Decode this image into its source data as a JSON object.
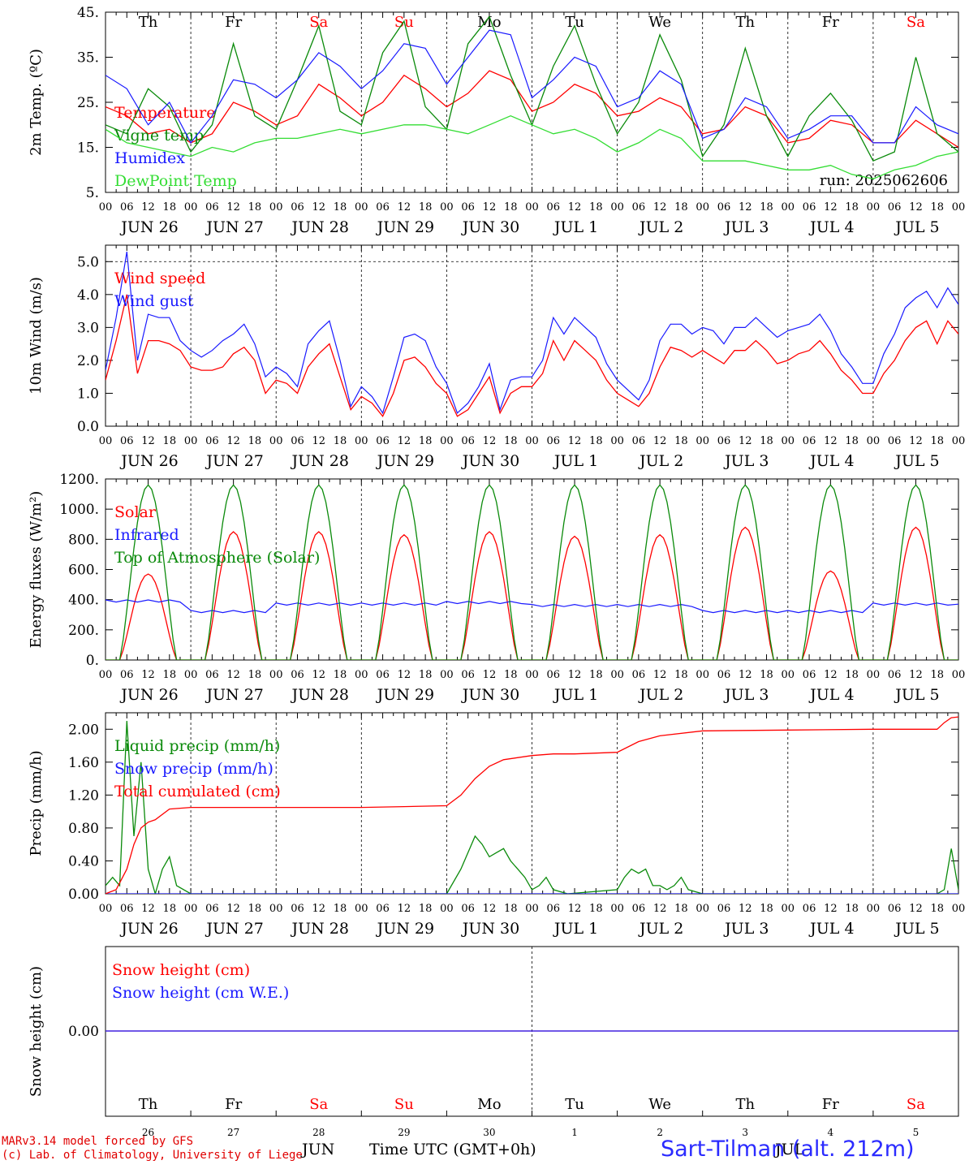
{
  "colors": {
    "red": "#ff0000",
    "green": "#0a8a0a",
    "blue": "#1a1aff",
    "lightgreen": "#33dd33",
    "text": "#000000"
  },
  "footer": {
    "line1": "MARv3.14 model forced by GFS",
    "line2": "(c) Lab. of Climatology, University of Liege",
    "station": "Sart-Tilman (alt. 212m)",
    "xaxis_title": "Time UTC (GMT+0h)",
    "month_jun": "JUN",
    "month_jul": "JUL"
  },
  "axes": {
    "hour_labels": [
      "00",
      "06",
      "12",
      "18"
    ],
    "final_hour": "00",
    "date_labels": [
      "JUN 26",
      "JUN 27",
      "JUN 28",
      "JUN 29",
      "JUN 30",
      "JUL  1",
      "JUL  2",
      "JUL  3",
      "JUL  4",
      "JUL  5"
    ],
    "weekdays": [
      "Th",
      "Fr",
      "Sa",
      "Su",
      "Mo",
      "Tu",
      "We",
      "Th",
      "Fr",
      "Sa"
    ],
    "weekday_colors": [
      "#000000",
      "#000000",
      "#ff0000",
      "#ff0000",
      "#000000",
      "#000000",
      "#000000",
      "#000000",
      "#000000",
      "#ff0000"
    ],
    "day_numbers": [
      "26",
      "27",
      "28",
      "29",
      "30",
      "1",
      "2",
      "3",
      "4",
      "5"
    ]
  },
  "chart_data": [
    {
      "type": "line",
      "id": "temperature",
      "ylabel": "2m Temp. (ºC)",
      "ylim": [
        5,
        45
      ],
      "yticks": [
        5,
        15,
        25,
        35,
        45
      ],
      "ytick_labels": [
        "5.",
        "15.",
        "25.",
        "35.",
        "45."
      ],
      "run_label": "run: 2025062606",
      "x_unit": "hours since 2025-06-26 00 UTC",
      "x_range": [
        0,
        240
      ],
      "series": [
        {
          "name": "Temperature",
          "color": "#ff0000",
          "x": [
            0,
            6,
            12,
            18,
            24,
            30,
            36,
            42,
            48,
            54,
            60,
            66,
            72,
            78,
            84,
            90,
            96,
            102,
            108,
            114,
            120,
            126,
            132,
            138,
            144,
            150,
            156,
            162,
            168,
            174,
            180,
            186,
            192,
            198,
            204,
            210,
            216,
            222,
            228,
            234,
            240
          ],
          "y": [
            24,
            22,
            18,
            19,
            16,
            18,
            25,
            23,
            20,
            22,
            29,
            26,
            22,
            25,
            31,
            28,
            24,
            27,
            32,
            30,
            23,
            25,
            29,
            27,
            22,
            23,
            26,
            24,
            18,
            19,
            24,
            22,
            16,
            17,
            21,
            20,
            16,
            16,
            21,
            18,
            15
          ]
        },
        {
          "name": "Vigne temp",
          "color": "#0a8a0a",
          "x": [
            0,
            6,
            12,
            18,
            24,
            30,
            36,
            42,
            48,
            54,
            60,
            66,
            72,
            78,
            84,
            90,
            96,
            102,
            108,
            114,
            120,
            126,
            132,
            138,
            144,
            150,
            156,
            162,
            168,
            174,
            180,
            186,
            192,
            198,
            204,
            210,
            216,
            222,
            228,
            234,
            240
          ],
          "y": [
            20,
            18,
            28,
            24,
            14,
            20,
            38,
            22,
            19,
            30,
            42,
            23,
            20,
            36,
            43,
            24,
            19,
            38,
            44,
            31,
            20,
            33,
            42,
            29,
            18,
            25,
            40,
            30,
            13,
            20,
            37,
            22,
            13,
            22,
            27,
            21,
            12,
            14,
            35,
            18,
            14
          ]
        },
        {
          "name": "Humidex",
          "color": "#1a1aff",
          "x": [
            0,
            6,
            12,
            18,
            24,
            30,
            36,
            42,
            48,
            54,
            60,
            66,
            72,
            78,
            84,
            90,
            96,
            102,
            108,
            114,
            120,
            126,
            132,
            138,
            144,
            150,
            156,
            162,
            168,
            174,
            180,
            186,
            192,
            198,
            204,
            210,
            216,
            222,
            228,
            234,
            240
          ],
          "y": [
            31,
            28,
            20,
            25,
            16,
            22,
            30,
            29,
            26,
            30,
            36,
            33,
            28,
            32,
            38,
            37,
            29,
            35,
            41,
            40,
            26,
            30,
            35,
            33,
            24,
            26,
            32,
            29,
            17,
            19,
            26,
            24,
            17,
            19,
            22,
            22,
            16,
            16,
            24,
            20,
            18
          ]
        },
        {
          "name": "DewPoint Temp",
          "color": "#33dd33",
          "x": [
            0,
            6,
            12,
            18,
            24,
            30,
            36,
            42,
            48,
            54,
            60,
            66,
            72,
            78,
            84,
            90,
            96,
            102,
            108,
            114,
            120,
            126,
            132,
            138,
            144,
            150,
            156,
            162,
            168,
            174,
            180,
            186,
            192,
            198,
            204,
            210,
            216,
            222,
            228,
            234,
            240
          ],
          "y": [
            19,
            16,
            15,
            14,
            13,
            15,
            14,
            16,
            17,
            17,
            18,
            19,
            18,
            19,
            20,
            20,
            19,
            18,
            20,
            22,
            20,
            18,
            19,
            17,
            14,
            16,
            19,
            17,
            12,
            12,
            12,
            11,
            10,
            10,
            11,
            9,
            8,
            10,
            11,
            13,
            14
          ]
        }
      ]
    },
    {
      "type": "line",
      "id": "wind",
      "ylabel": "10m Wind (m/s)",
      "ylim": [
        0,
        5.5
      ],
      "yticks": [
        0,
        1,
        2,
        3,
        4,
        5
      ],
      "ytick_labels": [
        "0.0",
        "1.0",
        "2.0",
        "3.0",
        "4.0",
        "5.0"
      ],
      "x_unit": "hours since 2025-06-26 00 UTC",
      "x_range": [
        0,
        240
      ],
      "series": [
        {
          "name": "Wind speed",
          "color": "#ff0000",
          "x": [
            0,
            3,
            6,
            9,
            12,
            15,
            18,
            21,
            24,
            27,
            30,
            33,
            36,
            39,
            42,
            45,
            48,
            51,
            54,
            57,
            60,
            63,
            66,
            69,
            72,
            75,
            78,
            81,
            84,
            87,
            90,
            93,
            96,
            99,
            102,
            105,
            108,
            111,
            114,
            117,
            120,
            123,
            126,
            129,
            132,
            135,
            138,
            141,
            144,
            147,
            150,
            153,
            156,
            159,
            162,
            165,
            168,
            171,
            174,
            177,
            180,
            183,
            186,
            189,
            192,
            195,
            198,
            201,
            204,
            207,
            210,
            213,
            216,
            219,
            222,
            225,
            228,
            231,
            234,
            237,
            240
          ],
          "y": [
            1.4,
            2.6,
            4.0,
            1.6,
            2.6,
            2.6,
            2.5,
            2.3,
            1.8,
            1.7,
            1.7,
            1.8,
            2.2,
            2.4,
            2.0,
            1.0,
            1.4,
            1.3,
            1.0,
            1.8,
            2.2,
            2.5,
            1.5,
            0.5,
            0.9,
            0.7,
            0.3,
            1.0,
            2.0,
            2.1,
            1.8,
            1.3,
            1.0,
            0.3,
            0.5,
            1.0,
            1.5,
            0.4,
            1.0,
            1.2,
            1.2,
            1.6,
            2.6,
            2.0,
            2.6,
            2.3,
            2.0,
            1.4,
            1.0,
            0.8,
            0.6,
            1.0,
            1.8,
            2.4,
            2.3,
            2.1,
            2.3,
            2.1,
            1.9,
            2.3,
            2.3,
            2.6,
            2.3,
            1.9,
            2.0,
            2.2,
            2.3,
            2.6,
            2.2,
            1.7,
            1.4,
            1.0,
            1.0,
            1.6,
            2.0,
            2.6,
            3.0,
            3.2,
            2.5,
            3.2,
            2.8
          ]
        },
        {
          "name": "Wind gust",
          "color": "#1a1aff",
          "x": [
            0,
            3,
            6,
            9,
            12,
            15,
            18,
            21,
            24,
            27,
            30,
            33,
            36,
            39,
            42,
            45,
            48,
            51,
            54,
            57,
            60,
            63,
            66,
            69,
            72,
            75,
            78,
            81,
            84,
            87,
            90,
            93,
            96,
            99,
            102,
            105,
            108,
            111,
            114,
            117,
            120,
            123,
            126,
            129,
            132,
            135,
            138,
            141,
            144,
            147,
            150,
            153,
            156,
            159,
            162,
            165,
            168,
            171,
            174,
            177,
            180,
            183,
            186,
            189,
            192,
            195,
            198,
            201,
            204,
            207,
            210,
            213,
            216,
            219,
            222,
            225,
            228,
            231,
            234,
            237,
            240
          ],
          "y": [
            1.7,
            3.3,
            5.3,
            2.0,
            3.4,
            3.3,
            3.3,
            2.6,
            2.3,
            2.1,
            2.3,
            2.6,
            2.8,
            3.1,
            2.5,
            1.5,
            1.8,
            1.6,
            1.2,
            2.5,
            2.9,
            3.2,
            2.0,
            0.6,
            1.2,
            0.9,
            0.4,
            1.5,
            2.7,
            2.8,
            2.6,
            1.8,
            1.3,
            0.4,
            0.7,
            1.2,
            1.9,
            0.5,
            1.4,
            1.5,
            1.5,
            2.0,
            3.3,
            2.8,
            3.3,
            3.0,
            2.7,
            1.9,
            1.4,
            1.1,
            0.8,
            1.4,
            2.6,
            3.1,
            3.1,
            2.8,
            3.0,
            2.9,
            2.5,
            3.0,
            3.0,
            3.3,
            3.0,
            2.7,
            2.9,
            3.0,
            3.1,
            3.4,
            2.9,
            2.2,
            1.8,
            1.3,
            1.3,
            2.2,
            2.8,
            3.6,
            3.9,
            4.1,
            3.6,
            4.2,
            3.7
          ]
        }
      ]
    },
    {
      "type": "line",
      "id": "energy",
      "ylabel": "Energy fluxes (W/m²)",
      "ylim": [
        0,
        1200
      ],
      "yticks": [
        0,
        200,
        400,
        600,
        800,
        1000,
        1200
      ],
      "ytick_labels": [
        "0.",
        "200.",
        "400.",
        "600.",
        "800.",
        "1000.",
        "1200."
      ],
      "x_unit": "hours since 2025-06-26 00 UTC",
      "x_range": [
        0,
        240
      ],
      "series": [
        {
          "name": "Solar",
          "color": "#ff0000",
          "day_peaks": [
            570,
            850,
            850,
            830,
            850,
            820,
            830,
            880,
            590,
            880
          ]
        },
        {
          "name": "Infrared",
          "color": "#1a1aff",
          "day_levels": [
            390,
            320,
            370,
            370,
            380,
            360,
            360,
            320,
            320,
            370
          ]
        },
        {
          "name": "Top of Atmosphere (Solar)",
          "color": "#0a8a0a",
          "day_peaks": [
            1160,
            1160,
            1160,
            1160,
            1160,
            1160,
            1160,
            1160,
            1160,
            1160
          ]
        }
      ]
    },
    {
      "type": "line",
      "id": "precip",
      "ylabel": "Precip (mm/h)",
      "ylim": [
        0,
        2.2
      ],
      "yticks": [
        0,
        0.4,
        0.8,
        1.2,
        1.6,
        2.0
      ],
      "ytick_labels": [
        "0.00",
        "0.40",
        "0.80",
        "1.20",
        "1.60",
        "2.00"
      ],
      "x_unit": "hours since 2025-06-26 00 UTC",
      "x_range": [
        0,
        240
      ],
      "series": [
        {
          "name": "Liquid precip (mm/h)",
          "color": "#0a8a0a",
          "x": [
            0,
            2,
            4,
            6,
            8,
            10,
            12,
            14,
            16,
            18,
            20,
            24,
            36,
            48,
            60,
            72,
            84,
            96,
            100,
            104,
            106,
            108,
            110,
            112,
            114,
            116,
            118,
            120,
            122,
            124,
            126,
            130,
            144,
            146,
            148,
            150,
            152,
            154,
            156,
            158,
            160,
            162,
            164,
            168,
            192,
            216,
            228,
            232,
            234,
            236,
            238,
            240
          ],
          "y": [
            0.1,
            0.2,
            0.1,
            2.1,
            0.7,
            1.6,
            0.3,
            0.0,
            0.3,
            0.45,
            0.1,
            0.0,
            0.0,
            0.0,
            0.0,
            0.0,
            0.0,
            0.0,
            0.3,
            0.7,
            0.6,
            0.45,
            0.5,
            0.55,
            0.4,
            0.3,
            0.2,
            0.05,
            0.1,
            0.2,
            0.05,
            0.0,
            0.05,
            0.2,
            0.3,
            0.25,
            0.3,
            0.1,
            0.1,
            0.05,
            0.1,
            0.2,
            0.05,
            0.0,
            0.0,
            0.0,
            0.0,
            0.0,
            0.0,
            0.05,
            0.55,
            0.05
          ]
        },
        {
          "name": "Snow precip (mm/h)",
          "color": "#1a1aff",
          "x": [
            0,
            240
          ],
          "y": [
            0,
            0
          ]
        },
        {
          "name": "Total cumulated (cm)",
          "color": "#ff0000",
          "x": [
            0,
            3,
            6,
            8,
            10,
            12,
            14,
            18,
            24,
            48,
            72,
            84,
            96,
            100,
            104,
            108,
            112,
            120,
            126,
            132,
            144,
            150,
            156,
            168,
            192,
            216,
            234,
            236,
            238,
            240
          ],
          "y": [
            0.0,
            0.05,
            0.3,
            0.6,
            0.8,
            0.87,
            0.9,
            1.03,
            1.05,
            1.05,
            1.05,
            1.06,
            1.07,
            1.2,
            1.4,
            1.55,
            1.63,
            1.68,
            1.7,
            1.7,
            1.72,
            1.85,
            1.92,
            1.98,
            1.99,
            2.0,
            2.0,
            2.08,
            2.14,
            2.15
          ]
        }
      ]
    },
    {
      "type": "line",
      "id": "snow",
      "ylabel": "Snow height (cm)",
      "yticks": [
        0
      ],
      "ytick_labels": [
        "0.00"
      ],
      "x_unit": "hours since 2025-06-26 00 UTC",
      "x_range": [
        0,
        240
      ],
      "series": [
        {
          "name": "Snow height (cm)",
          "color": "#ff0000",
          "x": [
            0,
            240
          ],
          "y": [
            0,
            0
          ]
        },
        {
          "name": "Snow height (cm W.E.)",
          "color": "#1a1aff",
          "x": [
            0,
            240
          ],
          "y": [
            0,
            0
          ]
        }
      ]
    }
  ]
}
